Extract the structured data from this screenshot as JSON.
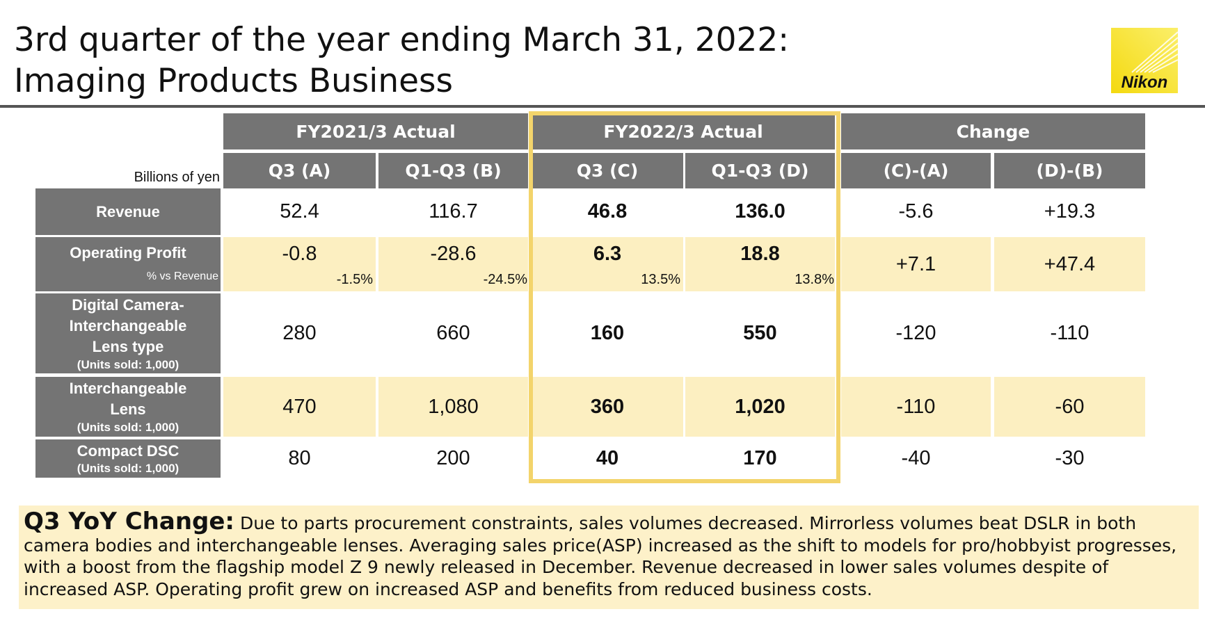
{
  "header": {
    "title_line1": "3rd quarter of the year ending March 31, 2022:",
    "title_line2": "Imaging Products Business",
    "logo_text": "Nikon"
  },
  "table": {
    "units_label": "Billions of yen",
    "group_headers": [
      "FY2021/3  Actual",
      "FY2022/3  Actual",
      "Change"
    ],
    "column_headers": [
      "Q3 (A)",
      "Q1-Q3 (B)",
      "Q3  (C)",
      "Q1-Q3 (D)",
      "(C)-(A)",
      "(D)-(B)"
    ],
    "rows": {
      "revenue": {
        "label": "Revenue",
        "values": [
          "52.4",
          "116.7",
          "46.8",
          "136.0",
          "-5.6",
          "+19.3"
        ]
      },
      "operating_profit": {
        "label": "Operating Profit",
        "sub_label": "% vs Revenue",
        "values": [
          "-0.8",
          "-28.6",
          "6.3",
          "18.8",
          "+7.1",
          "+47.4"
        ],
        "percentages": [
          "-1.5%",
          "-24.5%",
          "13.5%",
          "13.8%"
        ]
      },
      "digital_camera": {
        "label_line1": "Digital Camera-",
        "label_line2": "Interchangeable",
        "label_line3": "Lens type",
        "sub_label": "(Units sold: 1,000)",
        "values": [
          "280",
          "660",
          "160",
          "550",
          "-120",
          "-110"
        ]
      },
      "interchangeable_lens": {
        "label_line1": "Interchangeable",
        "label_line2": "Lens",
        "sub_label": "(Units sold: 1,000)",
        "values": [
          "470",
          "1,080",
          "360",
          "1,020",
          "-110",
          "-60"
        ]
      },
      "compact_dsc": {
        "label": "Compact DSC",
        "sub_label": "(Units sold: 1,000)",
        "values": [
          "80",
          "200",
          "40",
          "170",
          "-40",
          "-30"
        ]
      }
    }
  },
  "note": {
    "lead": "Q3 YoY Change:",
    "text": " Due to parts procurement constraints, sales volumes decreased. Mirrorless volumes beat DSLR in both camera bodies and interchangeable lenses. Averaging sales price(ASP) increased as the shift to models for pro/hobbyist progresses, with a boost from the flagship model  Z 9 newly released in December. Revenue decreased in lower sales volumes despite of increased ASP. Operating profit grew on increased ASP and benefits from reduced business costs."
  },
  "colors": {
    "header_gray": "#747474",
    "row_yellow": "#fcefc1",
    "highlight_border": "#f3d46b",
    "note_background": "#fdf1c9",
    "logo_yellow": "#f7e236"
  }
}
